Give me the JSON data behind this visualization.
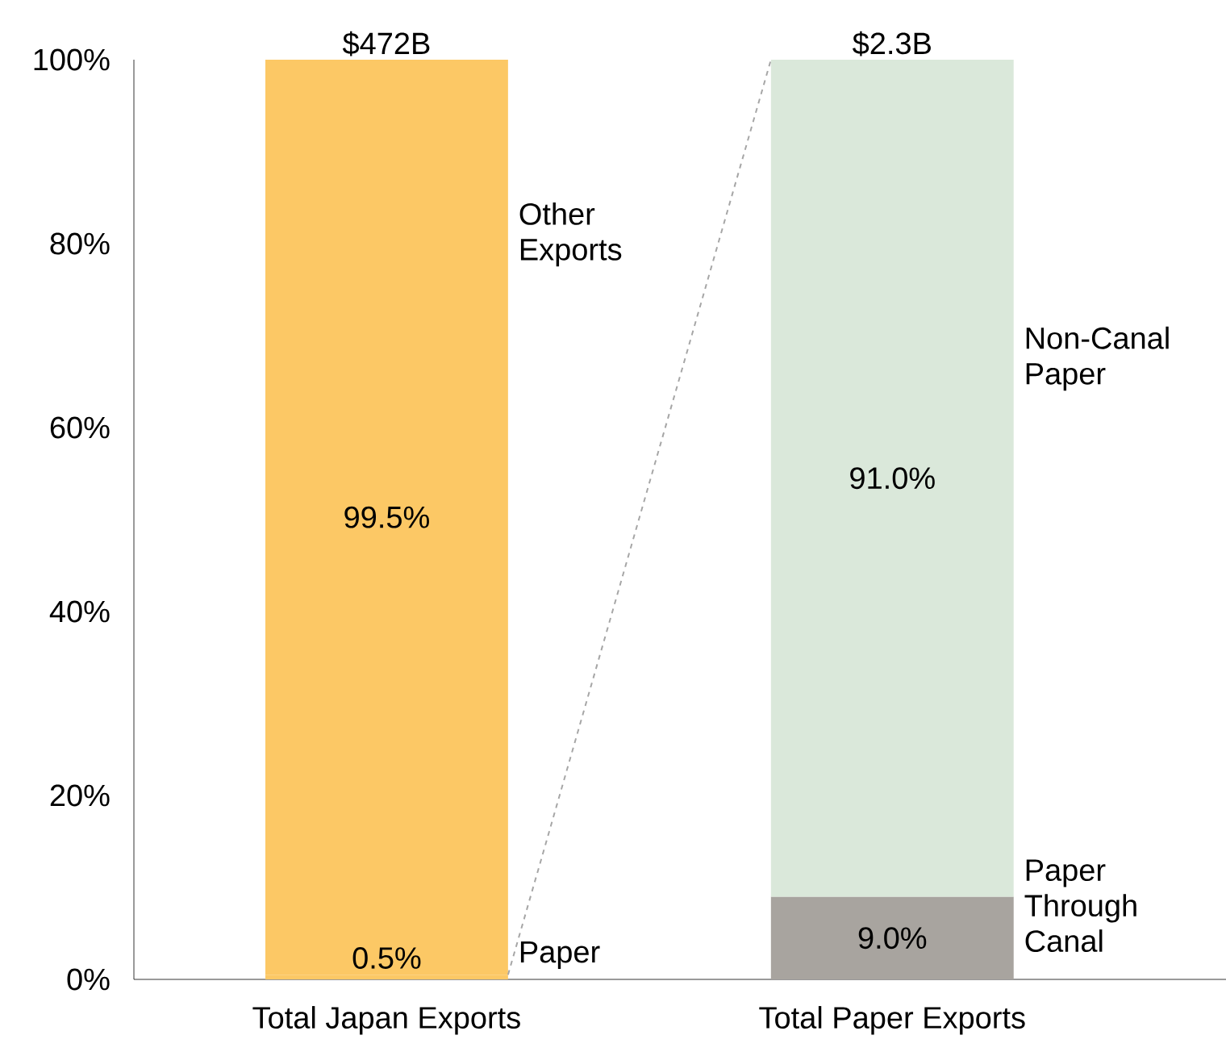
{
  "chart_data": {
    "type": "bar",
    "stacked": true,
    "categories": [
      "Total Japan Exports",
      "Total Paper Exports"
    ],
    "series": [
      {
        "name": "Paper",
        "color": "#fcc865",
        "values": [
          0.5,
          null
        ],
        "value_labels": [
          "0.5%",
          null
        ]
      },
      {
        "name": "Other Exports",
        "color": "#fcc865",
        "values": [
          99.5,
          null
        ],
        "value_labels": [
          "99.5%",
          null
        ]
      },
      {
        "name": "Paper Through Canal",
        "color": "#a8a49f",
        "values": [
          null,
          9.0
        ],
        "value_labels": [
          null,
          "9.0%"
        ]
      },
      {
        "name": "Non-Canal Paper",
        "color": "#dae8da",
        "values": [
          null,
          91.0
        ],
        "value_labels": [
          null,
          "91.0%"
        ]
      }
    ],
    "annotations": [
      {
        "text": "$472B",
        "x": "Total Japan Exports",
        "y": 100
      },
      {
        "text": "$2.3B",
        "x": "Total Paper Exports",
        "y": 100
      }
    ],
    "ylim": [
      0,
      100
    ],
    "yticks": [
      {
        "value": 0,
        "label": "0%"
      },
      {
        "value": 20,
        "label": "20%"
      },
      {
        "value": 40,
        "label": "40%"
      },
      {
        "value": 60,
        "label": "60%"
      },
      {
        "value": 80,
        "label": "80%"
      },
      {
        "value": 100,
        "label": "100%"
      }
    ]
  }
}
